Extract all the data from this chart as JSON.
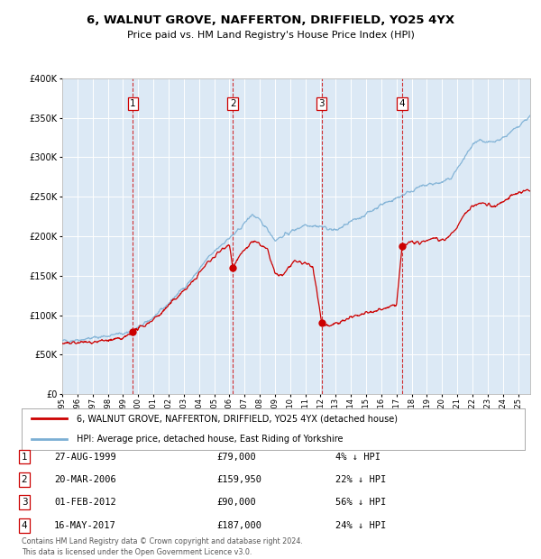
{
  "title": "6, WALNUT GROVE, NAFFERTON, DRIFFIELD, YO25 4YX",
  "subtitle": "Price paid vs. HM Land Registry's House Price Index (HPI)",
  "background_color": "#dce9f5",
  "ylim": [
    0,
    400000
  ],
  "yticks": [
    0,
    50000,
    100000,
    150000,
    200000,
    250000,
    300000,
    350000,
    400000
  ],
  "sale_dates": [
    1999.65,
    2006.22,
    2012.08,
    2017.37
  ],
  "sale_prices": [
    79000,
    159950,
    90000,
    187000
  ],
  "sale_labels": [
    "1",
    "2",
    "3",
    "4"
  ],
  "sale_info": [
    {
      "label": "1",
      "date": "27-AUG-1999",
      "price": "£79,000",
      "hpi": "4% ↓ HPI"
    },
    {
      "label": "2",
      "date": "20-MAR-2006",
      "price": "£159,950",
      "hpi": "22% ↓ HPI"
    },
    {
      "label": "3",
      "date": "01-FEB-2012",
      "price": "£90,000",
      "hpi": "56% ↓ HPI"
    },
    {
      "label": "4",
      "date": "16-MAY-2017",
      "price": "£187,000",
      "hpi": "24% ↓ HPI"
    }
  ],
  "hpi_color": "#7bafd4",
  "price_color": "#cc0000",
  "vline_color": "#cc0000",
  "dot_color": "#cc0000",
  "grid_color": "#ffffff",
  "legend_label_price": "6, WALNUT GROVE, NAFFERTON, DRIFFIELD, YO25 4YX (detached house)",
  "legend_label_hpi": "HPI: Average price, detached house, East Riding of Yorkshire",
  "footer": "Contains HM Land Registry data © Crown copyright and database right 2024.\nThis data is licensed under the Open Government Licence v3.0.",
  "xstart": 1995.0,
  "xend": 2025.8
}
